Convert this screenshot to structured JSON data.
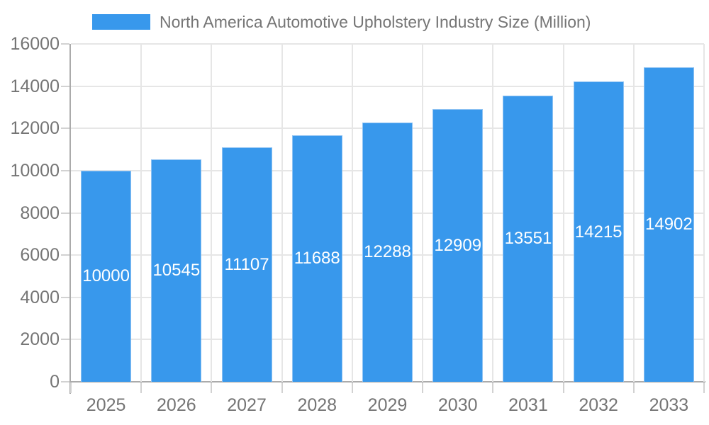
{
  "legend": {
    "label": "North America Automotive Upholstery Industry Size (Million)",
    "swatch_color": "#3898ec"
  },
  "chart_data": {
    "type": "bar",
    "title": "North America Automotive Upholstery Industry Size (Million)",
    "categories": [
      "2025",
      "2026",
      "2027",
      "2028",
      "2029",
      "2030",
      "2031",
      "2032",
      "2033"
    ],
    "values": [
      10000,
      10545,
      11107,
      11688,
      12288,
      12909,
      13551,
      14215,
      14902
    ],
    "xlabel": "",
    "ylabel": "",
    "ylim": [
      0,
      16000
    ],
    "yticks": [
      0,
      2000,
      4000,
      6000,
      8000,
      10000,
      12000,
      14000,
      16000
    ],
    "grid": true,
    "legend_position": "top",
    "bar_labels_visible": true,
    "colors": {
      "bar_fill": "#3898ec",
      "bar_border": "#8fc3f3",
      "bar_label_text": "#ffffff",
      "axis_text": "#757575",
      "title_text": "#757575",
      "grid_line": "#e6e6e6",
      "tick_line": "#d2d2d2",
      "axis_line": "#ababab",
      "background": "#ffffff"
    }
  }
}
